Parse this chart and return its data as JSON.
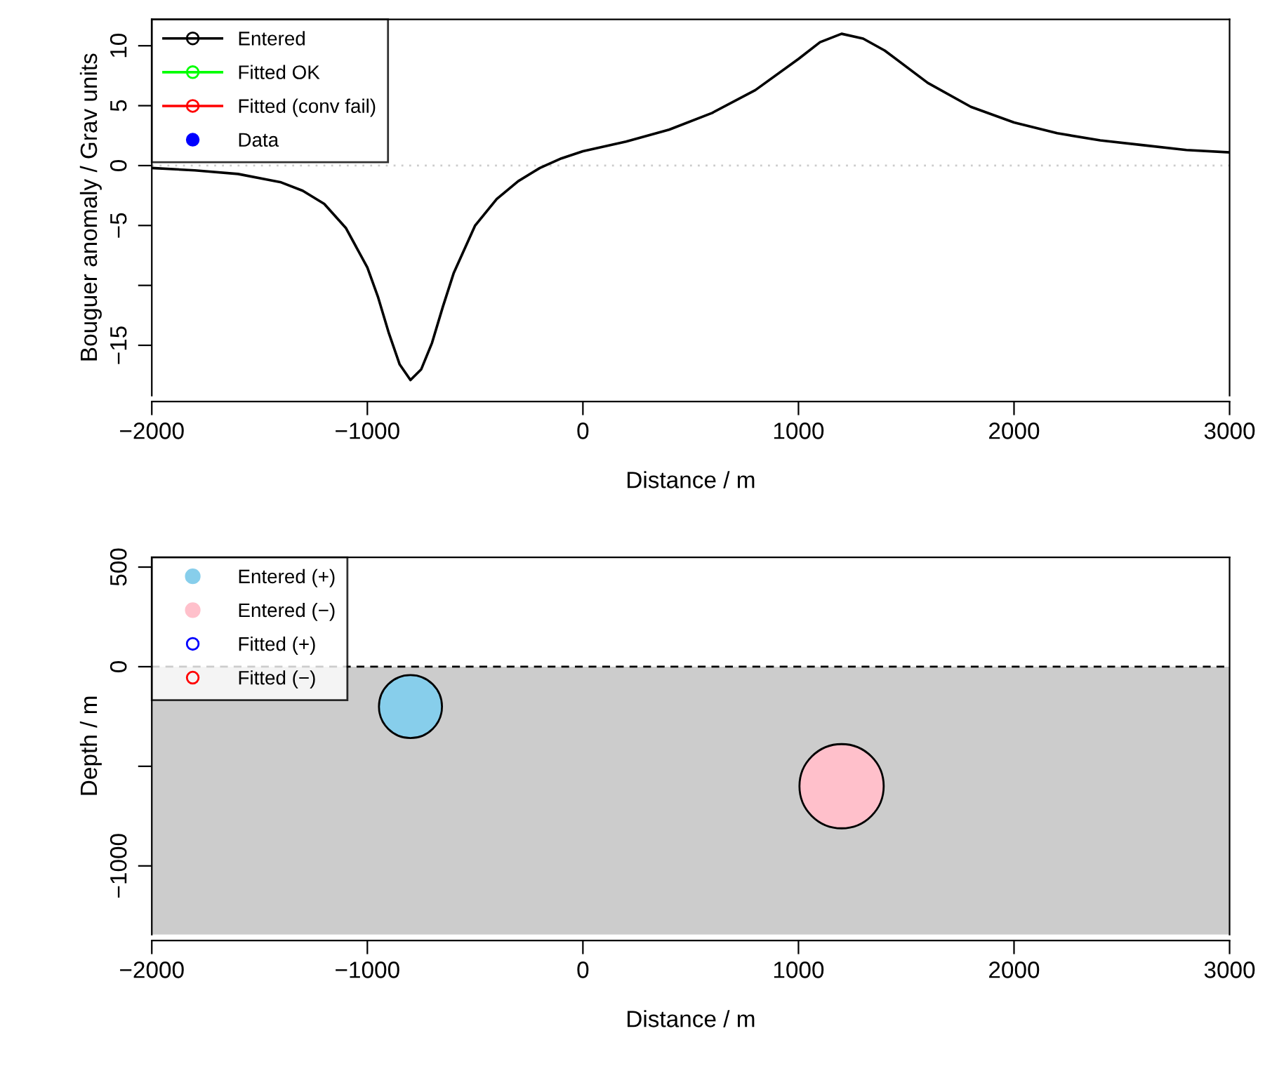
{
  "chart_data": [
    {
      "type": "line",
      "xlabel": "Distance / m",
      "ylabel": "Bouguer anomaly / Grav units",
      "xlim": [
        -2000,
        3000
      ],
      "xticks": [
        -2000,
        -1000,
        0,
        1000,
        2000,
        3000
      ],
      "ylim": [
        -19.2,
        12.2
      ],
      "yticks": [
        {
          "value": -15,
          "label": "−15"
        },
        {
          "value": -10,
          "label": null
        },
        {
          "value": -5,
          "label": "−5"
        },
        0,
        5,
        10
      ],
      "legend": "top left",
      "ref_lines": [
        {
          "axis": "y",
          "value": 0,
          "color": "#cccccc",
          "line_style": "dotted"
        }
      ],
      "series": [
        {
          "name": "Entered",
          "type": "line",
          "color": "#000000",
          "x": [
            -2000,
            -1800,
            -1600,
            -1400,
            -1300,
            -1200,
            -1100,
            -1000,
            -950,
            -900,
            -850,
            -800,
            -750,
            -700,
            -650,
            -600,
            -500,
            -400,
            -300,
            -200,
            -100,
            0,
            200,
            400,
            600,
            800,
            1000,
            1100,
            1200,
            1300,
            1400,
            1600,
            1800,
            2000,
            2200,
            2400,
            2600,
            2800,
            3000
          ],
          "values": [
            -0.2,
            -0.4,
            -0.7,
            -1.4,
            -2.1,
            -3.2,
            -5.2,
            -8.5,
            -11,
            -14,
            -16.6,
            -17.9,
            -17,
            -14.8,
            -11.8,
            -9,
            -5,
            -2.8,
            -1.3,
            -0.2,
            0.6,
            1.2,
            2.0,
            3.0,
            4.4,
            6.3,
            8.9,
            10.3,
            11.0,
            10.6,
            9.6,
            6.9,
            4.9,
            3.6,
            2.7,
            2.1,
            1.7,
            1.3,
            1.1
          ]
        },
        {
          "name": "Fitted OK",
          "type": "line",
          "color": "#00ff00"
        },
        {
          "name": "Fitted (conv fail)",
          "type": "line",
          "color": "#ff0000"
        },
        {
          "name": "Data",
          "type": "scatter",
          "color": "#0000ff"
        }
      ]
    },
    {
      "type": "bubble",
      "xlabel": "Distance / m",
      "ylabel": "Depth / m",
      "xlim": [
        -2000,
        3000
      ],
      "xticks": [
        -2000,
        -1000,
        0,
        1000,
        2000,
        3000
      ],
      "ylim": [
        -1345,
        549
      ],
      "yticks": [
        {
          "value": -1000,
          "label": "−1000"
        },
        {
          "value": -500,
          "label": null
        },
        0,
        500
      ],
      "legend": "top left",
      "bands": [
        {
          "axis": "y",
          "from": -1345,
          "to": 0,
          "color": "#cccccc"
        }
      ],
      "ref_lines": [
        {
          "axis": "y",
          "value": 0,
          "color": "#000000",
          "line_style": "dashed"
        }
      ],
      "series": [
        {
          "name": "Entered (+)",
          "type": "bubble",
          "color": "#87ceeb",
          "x": [
            -800
          ],
          "values": [
            -200
          ],
          "sizes": [
            0.56
          ]
        },
        {
          "name": "Entered (−)",
          "type": "bubble",
          "color": "#ffc0cb",
          "x": [
            1200
          ],
          "values": [
            -600
          ],
          "sizes": [
            1
          ]
        },
        {
          "name": "Fitted (+)",
          "type": "scatter",
          "color": "#0000ff"
        },
        {
          "name": "Fitted (−)",
          "type": "scatter",
          "color": "#ff0000"
        }
      ]
    }
  ]
}
